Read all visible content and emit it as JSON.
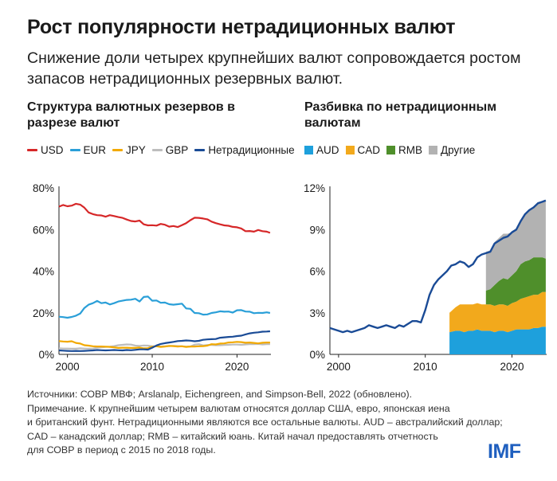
{
  "title": "Рост популярности нетрадиционных валют",
  "subtitle": "Снижение доли четырех крупнейших валют сопровождается ростом запасов нетрадиционных резервных валют.",
  "notes": [
    "Источники: СОВР МВФ; Arslanalp, Eichengreen, and Simpson-Bell, 2022 (обновлено).",
    "Примечание. К крупнейшим четырем валютам относятся доллар США, евро, японская иена",
    "и британский фунт. Нетрадиционными являются все остальные валюты. AUD – австралийский доллар;",
    "CAD – канадский доллар; RMB – китайский юань. Китай начал предоставлять отчетность",
    "для СОВР в период с 2015 по 2018 годы."
  ],
  "logo": "IMF",
  "chart_data": [
    {
      "type": "line",
      "title": "Структура валютных резервов в разрезе валют",
      "ylim": [
        0,
        80
      ],
      "yticks": [
        "0%",
        "20%",
        "40%",
        "60%",
        "80%"
      ],
      "xlim": [
        1999,
        2024
      ],
      "xticks": [
        "2000",
        "2010",
        "2020"
      ],
      "grid": false,
      "legend_position": "top",
      "series": [
        {
          "name": "USD",
          "color": "#d62728",
          "x": [
            1999,
            1999.5,
            2000,
            2000.5,
            2001,
            2001.5,
            2002,
            2002.5,
            2003,
            2003.5,
            2004,
            2004.5,
            2005,
            2005.5,
            2006,
            2006.5,
            2007,
            2007.5,
            2008,
            2008.5,
            2009,
            2009.5,
            2010,
            2010.5,
            2011,
            2011.5,
            2012,
            2012.5,
            2013,
            2013.5,
            2014,
            2014.5,
            2015,
            2015.5,
            2016,
            2016.5,
            2017,
            2017.5,
            2018,
            2018.5,
            2019,
            2019.5,
            2020,
            2020.5,
            2021,
            2021.5,
            2022,
            2022.5,
            2023,
            2023.5,
            2023.9
          ],
          "values": [
            71.0,
            71.8,
            71.2,
            71.5,
            72.4,
            72.0,
            70.5,
            68.2,
            67.4,
            66.9,
            66.8,
            66.2,
            66.9,
            66.5,
            66.0,
            65.6,
            64.8,
            64.1,
            63.9,
            64.3,
            62.5,
            62.0,
            62.1,
            61.9,
            62.7,
            62.3,
            61.4,
            61.7,
            61.2,
            62.1,
            63.1,
            64.5,
            65.7,
            65.6,
            65.3,
            64.9,
            63.8,
            63.1,
            62.5,
            62.0,
            61.8,
            61.3,
            61.1,
            60.5,
            59.2,
            59.3,
            59.0,
            59.8,
            59.2,
            59.0,
            58.4
          ]
        },
        {
          "name": "EUR",
          "color": "#2a9fd8",
          "x": [
            1999,
            1999.5,
            2000,
            2000.5,
            2001,
            2001.5,
            2002,
            2002.5,
            2003,
            2003.5,
            2004,
            2004.5,
            2005,
            2005.5,
            2006,
            2006.5,
            2007,
            2007.5,
            2008,
            2008.5,
            2009,
            2009.5,
            2010,
            2010.5,
            2011,
            2011.5,
            2012,
            2012.5,
            2013,
            2013.5,
            2014,
            2014.5,
            2015,
            2015.5,
            2016,
            2016.5,
            2017,
            2017.5,
            2018,
            2018.5,
            2019,
            2019.5,
            2020,
            2020.5,
            2021,
            2021.5,
            2022,
            2022.5,
            2023,
            2023.5,
            2023.9
          ],
          "values": [
            18.1,
            17.9,
            17.6,
            18.0,
            18.6,
            19.6,
            22.3,
            23.9,
            24.6,
            25.7,
            24.6,
            24.9,
            24.0,
            24.6,
            25.4,
            25.8,
            26.2,
            26.3,
            26.7,
            25.4,
            27.6,
            27.8,
            25.8,
            25.9,
            24.8,
            24.9,
            24.1,
            23.9,
            24.1,
            24.4,
            22.1,
            21.9,
            19.9,
            19.8,
            19.1,
            19.2,
            19.9,
            20.2,
            20.7,
            20.5,
            20.6,
            20.1,
            21.2,
            21.3,
            20.6,
            20.5,
            19.8,
            20.0,
            19.9,
            20.2,
            19.9
          ]
        },
        {
          "name": "JPY",
          "color": "#f2a900",
          "x": [
            1999,
            1999.5,
            2000,
            2000.5,
            2001,
            2001.5,
            2002,
            2002.5,
            2003,
            2003.5,
            2004,
            2004.5,
            2005,
            2005.5,
            2006,
            2006.5,
            2007,
            2007.5,
            2008,
            2008.5,
            2009,
            2009.5,
            2010,
            2010.5,
            2011,
            2011.5,
            2012,
            2012.5,
            2013,
            2013.5,
            2014,
            2014.5,
            2015,
            2015.5,
            2016,
            2016.5,
            2017,
            2017.5,
            2018,
            2018.5,
            2019,
            2019.5,
            2020,
            2020.5,
            2021,
            2021.5,
            2022,
            2022.5,
            2023,
            2023.5,
            2023.9
          ],
          "values": [
            6.4,
            6.2,
            6.1,
            6.3,
            5.5,
            5.2,
            4.4,
            4.2,
            3.9,
            3.8,
            3.8,
            3.7,
            3.6,
            3.4,
            3.1,
            3.2,
            3.2,
            3.1,
            3.1,
            3.3,
            2.9,
            3.0,
            3.7,
            3.9,
            3.6,
            3.8,
            4.1,
            4.0,
            3.8,
            3.9,
            3.6,
            3.8,
            3.8,
            3.9,
            4.0,
            4.2,
            4.9,
            4.8,
            5.2,
            5.3,
            5.7,
            5.8,
            6.0,
            5.9,
            5.6,
            5.7,
            5.5,
            5.3,
            5.6,
            5.7,
            5.7
          ]
        },
        {
          "name": "GBP",
          "color": "#bdbdbd",
          "x": [
            1999,
            1999.5,
            2000,
            2000.5,
            2001,
            2001.5,
            2002,
            2002.5,
            2003,
            2003.5,
            2004,
            2004.5,
            2005,
            2005.5,
            2006,
            2006.5,
            2007,
            2007.5,
            2008,
            2008.5,
            2009,
            2009.5,
            2010,
            2010.5,
            2011,
            2011.5,
            2012,
            2012.5,
            2013,
            2013.5,
            2014,
            2014.5,
            2015,
            2015.5,
            2016,
            2016.5,
            2017,
            2017.5,
            2018,
            2018.5,
            2019,
            2019.5,
            2020,
            2020.5,
            2021,
            2021.5,
            2022,
            2022.5,
            2023,
            2023.5,
            2023.9
          ],
          "values": [
            2.9,
            2.8,
            2.8,
            2.7,
            2.7,
            2.9,
            2.8,
            2.7,
            2.8,
            3.2,
            3.4,
            3.6,
            3.7,
            4.0,
            4.4,
            4.6,
            4.8,
            4.7,
            4.2,
            4.1,
            4.3,
            4.2,
            3.9,
            4.0,
            3.8,
            3.9,
            4.0,
            4.1,
            4.0,
            3.9,
            3.7,
            3.8,
            4.7,
            4.9,
            4.3,
            4.5,
            4.5,
            4.4,
            4.4,
            4.5,
            4.6,
            4.7,
            4.7,
            4.6,
            4.8,
            4.9,
            4.9,
            5.0,
            4.8,
            4.9,
            4.9
          ]
        },
        {
          "name": "Нетрадиционные",
          "color": "#1a4b96",
          "x": [
            1999,
            1999.5,
            2000,
            2000.5,
            2001,
            2001.5,
            2002,
            2002.5,
            2003,
            2003.5,
            2004,
            2004.5,
            2005,
            2005.5,
            2006,
            2006.5,
            2007,
            2007.5,
            2008,
            2008.5,
            2009,
            2009.5,
            2010,
            2010.5,
            2011,
            2011.5,
            2012,
            2012.5,
            2013,
            2013.5,
            2014,
            2014.5,
            2015,
            2015.5,
            2016,
            2016.5,
            2017,
            2017.5,
            2018,
            2018.5,
            2019,
            2019.5,
            2020,
            2020.5,
            2021,
            2021.5,
            2022,
            2022.5,
            2023,
            2023.5,
            2023.9
          ],
          "values": [
            1.9,
            1.8,
            1.7,
            1.6,
            1.7,
            1.6,
            1.7,
            1.8,
            1.9,
            2.1,
            2.0,
            1.9,
            2.0,
            2.1,
            2.0,
            1.9,
            2.1,
            2.0,
            2.2,
            2.4,
            2.4,
            2.3,
            3.2,
            4.3,
            5.0,
            5.4,
            5.7,
            6.0,
            6.4,
            6.5,
            6.7,
            6.6,
            6.3,
            6.5,
            7.0,
            7.2,
            7.3,
            7.4,
            8.0,
            8.2,
            8.4,
            8.5,
            8.8,
            9.0,
            9.6,
            10.1,
            10.4,
            10.6,
            10.9,
            11.0,
            11.1
          ]
        }
      ]
    },
    {
      "type": "area",
      "title": "Разбивка по нетрадиционным валютам",
      "ylim": [
        0,
        12
      ],
      "yticks": [
        "0%",
        "3%",
        "6%",
        "9%",
        "12%"
      ],
      "xlim": [
        1999,
        2024
      ],
      "xticks": [
        "2000",
        "2010",
        "2020"
      ],
      "grid": false,
      "legend_position": "top",
      "line_series": {
        "name": "Нетрадиционные",
        "color": "#1a4b96",
        "x": [
          1999,
          1999.5,
          2000,
          2000.5,
          2001,
          2001.5,
          2002,
          2002.5,
          2003,
          2003.5,
          2004,
          2004.5,
          2005,
          2005.5,
          2006,
          2006.5,
          2007,
          2007.5,
          2008,
          2008.5,
          2009,
          2009.5,
          2010,
          2010.5,
          2011,
          2011.5,
          2012,
          2012.5,
          2013,
          2013.5,
          2014,
          2014.5,
          2015,
          2015.5,
          2016,
          2016.5,
          2017,
          2017.5,
          2018,
          2018.5,
          2019,
          2019.5,
          2020,
          2020.5,
          2021,
          2021.5,
          2022,
          2022.5,
          2023,
          2023.5,
          2023.9
        ],
        "values": [
          1.9,
          1.8,
          1.7,
          1.6,
          1.7,
          1.6,
          1.7,
          1.8,
          1.9,
          2.1,
          2.0,
          1.9,
          2.0,
          2.1,
          2.0,
          1.9,
          2.1,
          2.0,
          2.2,
          2.4,
          2.4,
          2.3,
          3.2,
          4.3,
          5.0,
          5.4,
          5.7,
          6.0,
          6.4,
          6.5,
          6.7,
          6.6,
          6.3,
          6.5,
          7.0,
          7.2,
          7.3,
          7.4,
          8.0,
          8.2,
          8.4,
          8.5,
          8.8,
          9.0,
          9.6,
          10.1,
          10.4,
          10.6,
          10.9,
          11.0,
          11.1
        ]
      },
      "stack_x": [
        2012.8,
        2013.5,
        2014,
        2014.5,
        2015,
        2015.5,
        2016,
        2016.5,
        2016.95,
        2017,
        2017.5,
        2018,
        2018.5,
        2019,
        2019.5,
        2020,
        2020.5,
        2021,
        2021.5,
        2022,
        2022.5,
        2023,
        2023.5,
        2023.9
      ],
      "series": [
        {
          "name": "AUD",
          "color": "#1ea0dc",
          "values": [
            1.6,
            1.7,
            1.7,
            1.6,
            1.7,
            1.7,
            1.8,
            1.7,
            1.7,
            1.7,
            1.7,
            1.6,
            1.7,
            1.7,
            1.6,
            1.7,
            1.8,
            1.8,
            1.8,
            1.8,
            1.9,
            1.9,
            2.0,
            2.0
          ]
        },
        {
          "name": "CAD",
          "color": "#f2a91c",
          "values": [
            1.4,
            1.7,
            1.9,
            2.0,
            1.9,
            1.9,
            1.9,
            1.9,
            1.9,
            1.9,
            1.9,
            1.9,
            1.9,
            1.9,
            1.9,
            2.0,
            2.0,
            2.2,
            2.3,
            2.4,
            2.4,
            2.4,
            2.5,
            2.5
          ]
        },
        {
          "name": "RMB",
          "color": "#4f8f2b",
          "values": [
            0,
            0,
            0,
            0,
            0,
            0,
            0,
            0,
            0,
            1.0,
            1.1,
            1.5,
            1.7,
            1.9,
            1.9,
            2.0,
            2.2,
            2.5,
            2.6,
            2.6,
            2.7,
            2.7,
            2.5,
            2.4
          ]
        },
        {
          "name": "Другие",
          "color": "#b2b2b2",
          "values": [
            0,
            0,
            0,
            0,
            0,
            0,
            0,
            0,
            0,
            2.8,
            2.8,
            3.1,
            3.1,
            3.2,
            3.3,
            3.1,
            3.0,
            3.1,
            3.4,
            3.6,
            3.6,
            3.9,
            4.0,
            4.2
          ]
        }
      ]
    }
  ]
}
